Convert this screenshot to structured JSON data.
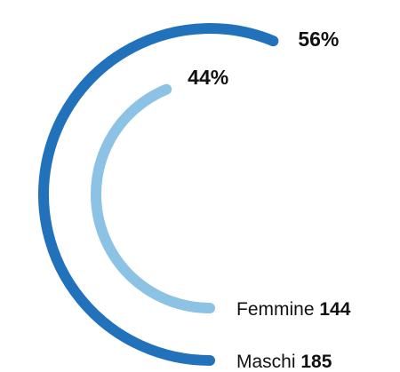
{
  "chart_data": {
    "type": "radial-bar",
    "categories": [
      "Maschi",
      "Femmine"
    ],
    "values": [
      185,
      144
    ],
    "percent_labels": [
      "56%",
      "44%"
    ],
    "colors": [
      "#2271bb",
      "#8cc3e5"
    ]
  }
}
